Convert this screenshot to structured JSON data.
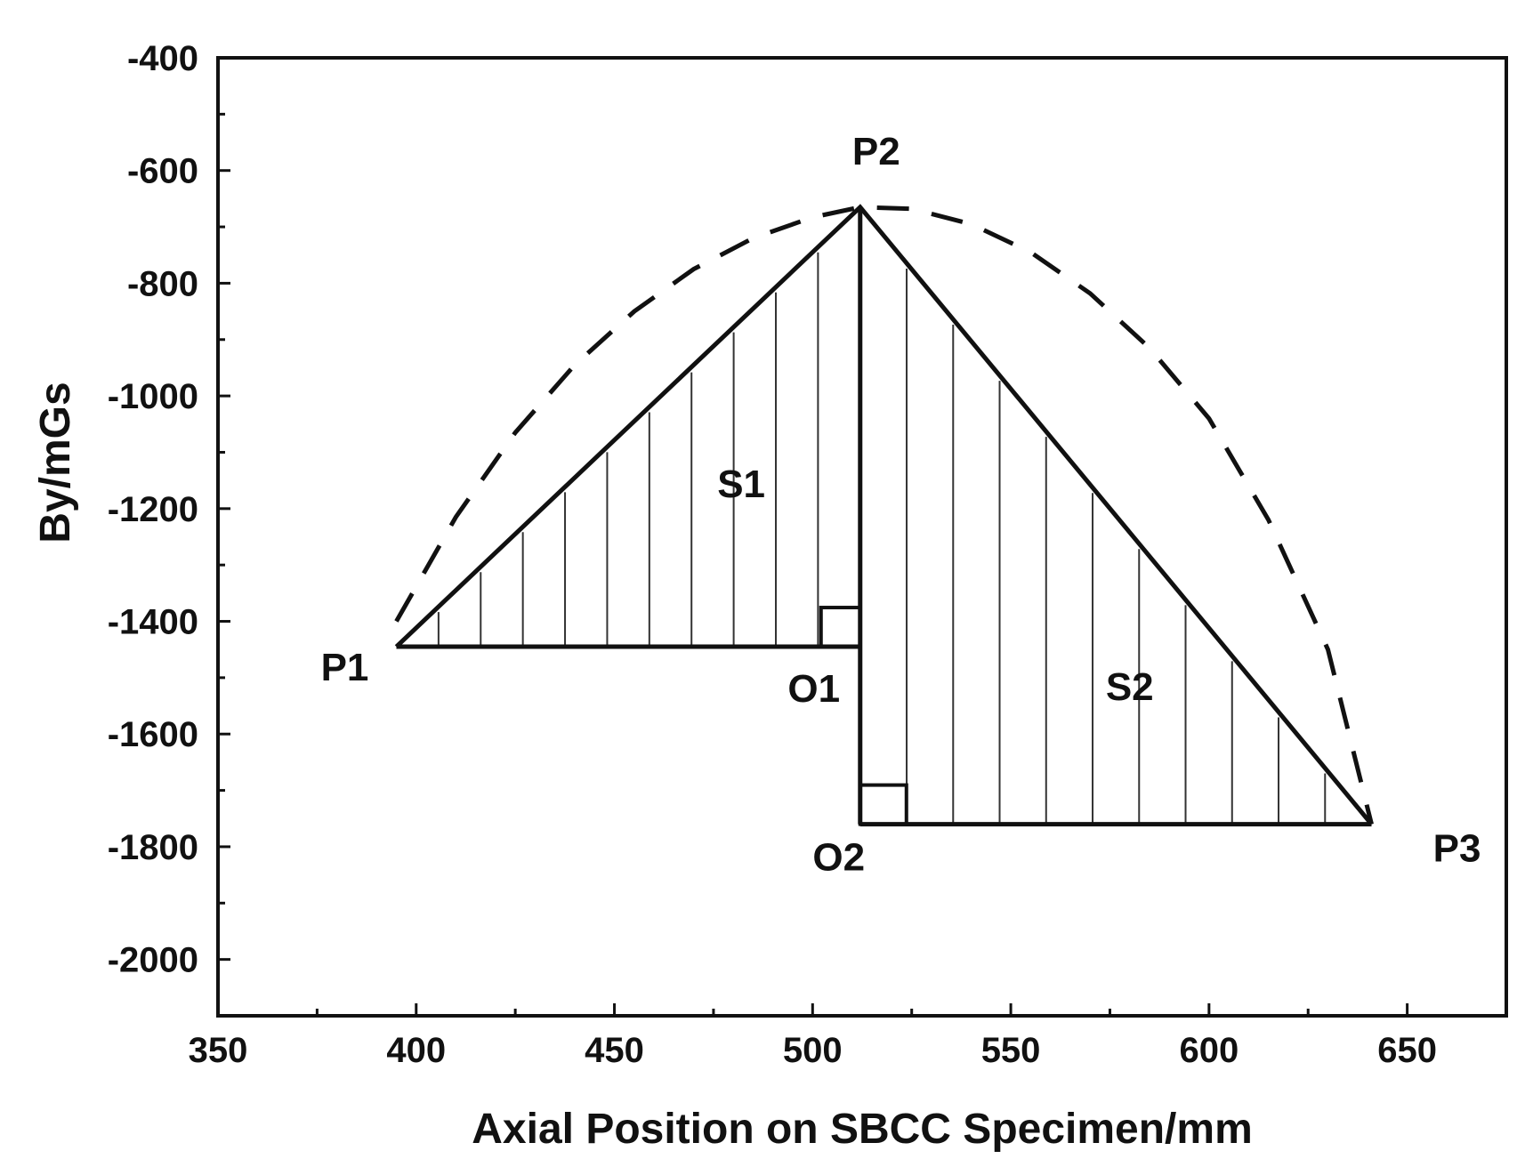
{
  "chart_data": {
    "type": "line",
    "xlabel": "Axial Position on SBCC Specimen/mm",
    "ylabel": "By/mGs",
    "xlim": [
      350,
      675
    ],
    "ylim": [
      -2100,
      -400
    ],
    "x_ticks": [
      350,
      400,
      450,
      500,
      550,
      600,
      650
    ],
    "y_ticks": [
      -400,
      -600,
      -800,
      -1000,
      -1200,
      -1400,
      -1600,
      -1800,
      -2000
    ],
    "grid": false,
    "legend": "none",
    "series": [
      {
        "style": "dashed",
        "x": [
          395,
          410,
          425,
          440,
          455,
          470,
          485,
          500,
          512,
          525,
          540,
          555,
          570,
          585,
          600,
          615,
          630,
          641
        ],
        "y": [
          -1400,
          -1215,
          -1065,
          -945,
          -850,
          -775,
          -720,
          -683,
          -665,
          -668,
          -695,
          -745,
          -818,
          -915,
          -1040,
          -1220,
          -1450,
          -1760
        ]
      },
      {
        "style": "solid",
        "x": [
          395,
          512,
          641
        ],
        "y": [
          -1445,
          -665,
          -1760
        ]
      }
    ],
    "points": [
      {
        "label": "P1",
        "x": 395,
        "y": -1445
      },
      {
        "label": "P2",
        "x": 512,
        "y": -665
      },
      {
        "label": "P3",
        "x": 641,
        "y": -1760
      },
      {
        "label": "O1",
        "x": 512,
        "y": -1445
      },
      {
        "label": "O2",
        "x": 512,
        "y": -1760
      }
    ],
    "regions": [
      {
        "label": "S1",
        "x": 482,
        "y": -1180
      },
      {
        "label": "S2",
        "x": 580,
        "y": -1540
      }
    ]
  }
}
